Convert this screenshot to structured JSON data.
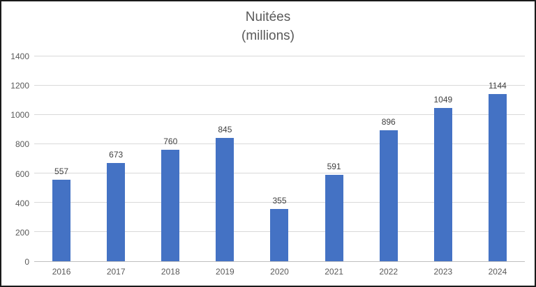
{
  "chart_data": {
    "type": "bar",
    "title": "Nuitées (millions)",
    "title_lines": [
      "Nuitées",
      "(millions)"
    ],
    "categories": [
      "2016",
      "2017",
      "2018",
      "2019",
      "2020",
      "2021",
      "2022",
      "2023",
      "2024"
    ],
    "values": [
      557,
      673,
      760,
      845,
      355,
      591,
      896,
      1049,
      1144
    ],
    "xlabel": "",
    "ylabel": "",
    "ylim": [
      0,
      1400
    ],
    "yticks": [
      0,
      200,
      400,
      600,
      800,
      1000,
      1200,
      1400
    ],
    "grid": true,
    "legend_position": "none",
    "colors": {
      "bar-color": "#4472c4",
      "grid-color": "#d9d9d9",
      "axis-color": "#bfbfbf",
      "title-color": "#595959",
      "tick-color": "#595959",
      "value-label-color": "#404040",
      "frame-color": "#1a1a1a",
      "bg-color": "#ffffff"
    }
  }
}
